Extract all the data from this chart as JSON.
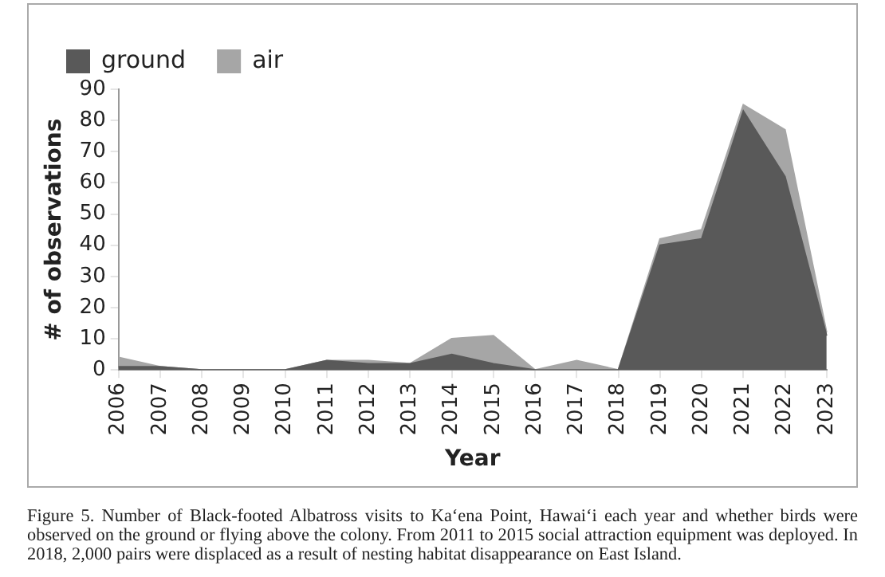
{
  "chart_data": {
    "type": "area",
    "stacked": true,
    "categories": [
      "2006",
      "2007",
      "2008",
      "2009",
      "2010",
      "2011",
      "2012",
      "2013",
      "2014",
      "2015",
      "2016",
      "2017",
      "2018",
      "2019",
      "2020",
      "2021",
      "2022",
      "2023"
    ],
    "series": [
      {
        "name": "ground",
        "color": "#595959",
        "values": [
          1,
          1,
          0,
          0,
          0,
          3,
          2,
          2,
          5,
          2,
          0,
          0,
          0,
          40,
          42,
          83,
          62,
          11
        ]
      },
      {
        "name": "air",
        "color": "#a6a6a6",
        "values": [
          3,
          0,
          0,
          0,
          0,
          0,
          1,
          0,
          5,
          9,
          0,
          3,
          0,
          2,
          3,
          2,
          15,
          1
        ]
      }
    ],
    "xlabel": "Year",
    "ylabel": "# of observations",
    "ylim": [
      0,
      90
    ],
    "yticks": [
      0,
      10,
      20,
      30,
      40,
      50,
      60,
      70,
      80,
      90
    ],
    "legend": "top left",
    "annotations": [
      "Figure 5. Number of Black-footed Albatross visits to Ka‘ena Point, Hawai‘i each year and whether birds were observed on the ground or flying above the colony. From 2011 to 2015 social attraction equipment was deployed. In 2018, 2,000 pairs were displaced as a result of nesting habitat disappearance on East Island."
    ]
  }
}
